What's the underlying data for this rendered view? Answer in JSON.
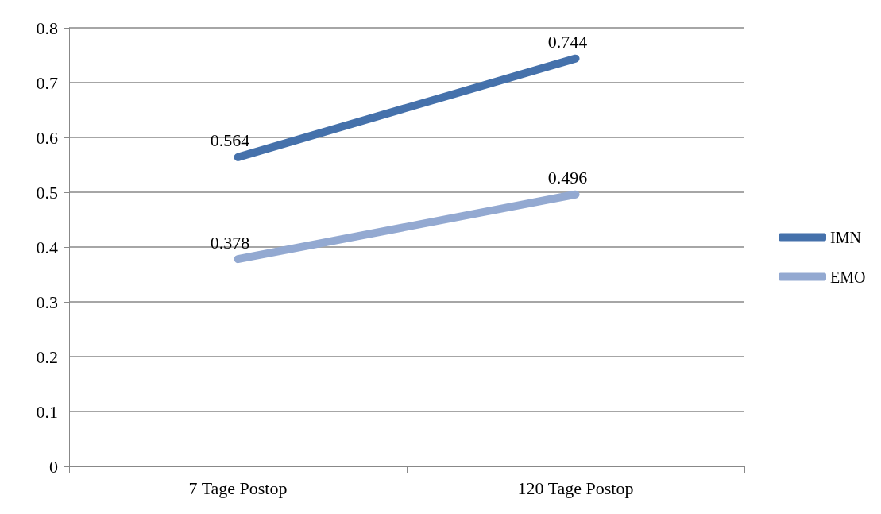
{
  "chart_data": {
    "type": "line",
    "categories": [
      "7 Tage Postop",
      "120 Tage Postop"
    ],
    "series": [
      {
        "name": "IMN",
        "color": "#4571ab",
        "values": [
          0.564,
          0.744
        ]
      },
      {
        "name": "EMO",
        "color": "#93a9d1",
        "values": [
          0.378,
          0.496
        ]
      }
    ],
    "ylim": [
      0,
      0.8
    ],
    "yticks": [
      0,
      0.1,
      0.2,
      0.3,
      0.4,
      0.5,
      0.6,
      0.7,
      0.8
    ],
    "grid": "y",
    "legend": "right",
    "marker": "none",
    "line_style": "solid",
    "data_labels": true
  }
}
